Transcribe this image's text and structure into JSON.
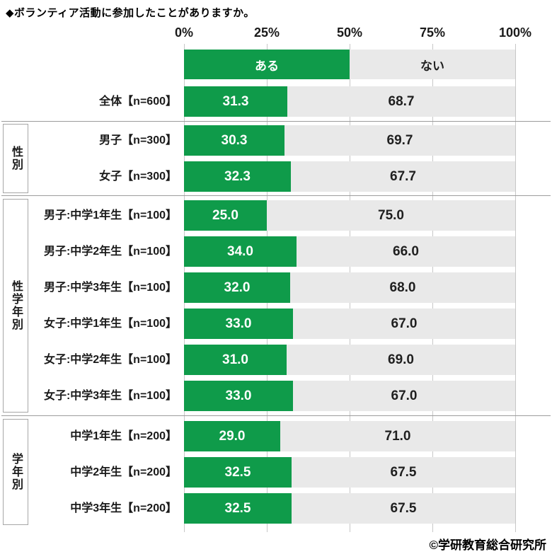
{
  "title": "◆ボランティア活動に参加したことがありますか。",
  "footer": "©学研教育総合研究所",
  "colors": {
    "yes_fill": "#0f9b4a",
    "no_fill": "#e9e9e9",
    "yes_text": "#ffffff",
    "no_text": "#1f1f1f",
    "gridline": "#c7c7c7",
    "separator": "#9c9c9c",
    "box_border": "#a6a6a6"
  },
  "chart_data": {
    "type": "bar",
    "orientation": "horizontal",
    "stacked": true,
    "unit": "%",
    "xlim": [
      0,
      100
    ],
    "x_ticks": [
      "0%",
      "25%",
      "50%",
      "75%",
      "100%"
    ],
    "grid": true,
    "legend_position": "top",
    "legend": [
      {
        "label": "ある",
        "color": "#0f9b4a"
      },
      {
        "label": "ない",
        "color": "#e9e9e9"
      }
    ],
    "groups": [
      {
        "name": "",
        "rows": [
          {
            "label": "全体【n=600】",
            "values": [
              "31.3",
              "68.7"
            ]
          }
        ]
      },
      {
        "name": "性別",
        "rows": [
          {
            "label": "男子【n=300】",
            "values": [
              "30.3",
              "69.7"
            ]
          },
          {
            "label": "女子【n=300】",
            "values": [
              "32.3",
              "67.7"
            ]
          }
        ]
      },
      {
        "name": "性学年別",
        "rows": [
          {
            "label": "男子:中学1年生【n=100】",
            "values": [
              "25.0",
              "75.0"
            ]
          },
          {
            "label": "男子:中学2年生【n=100】",
            "values": [
              "34.0",
              "66.0"
            ]
          },
          {
            "label": "男子:中学3年生【n=100】",
            "values": [
              "32.0",
              "68.0"
            ]
          },
          {
            "label": "女子:中学1年生【n=100】",
            "values": [
              "33.0",
              "67.0"
            ]
          },
          {
            "label": "女子:中学2年生【n=100】",
            "values": [
              "31.0",
              "69.0"
            ]
          },
          {
            "label": "女子:中学3年生【n=100】",
            "values": [
              "33.0",
              "67.0"
            ]
          }
        ]
      },
      {
        "name": "学年別",
        "rows": [
          {
            "label": "中学1年生【n=200】",
            "values": [
              "29.0",
              "71.0"
            ]
          },
          {
            "label": "中学2年生【n=200】",
            "values": [
              "32.5",
              "67.5"
            ]
          },
          {
            "label": "中学3年生【n=200】",
            "values": [
              "32.5",
              "67.5"
            ]
          }
        ]
      }
    ]
  }
}
